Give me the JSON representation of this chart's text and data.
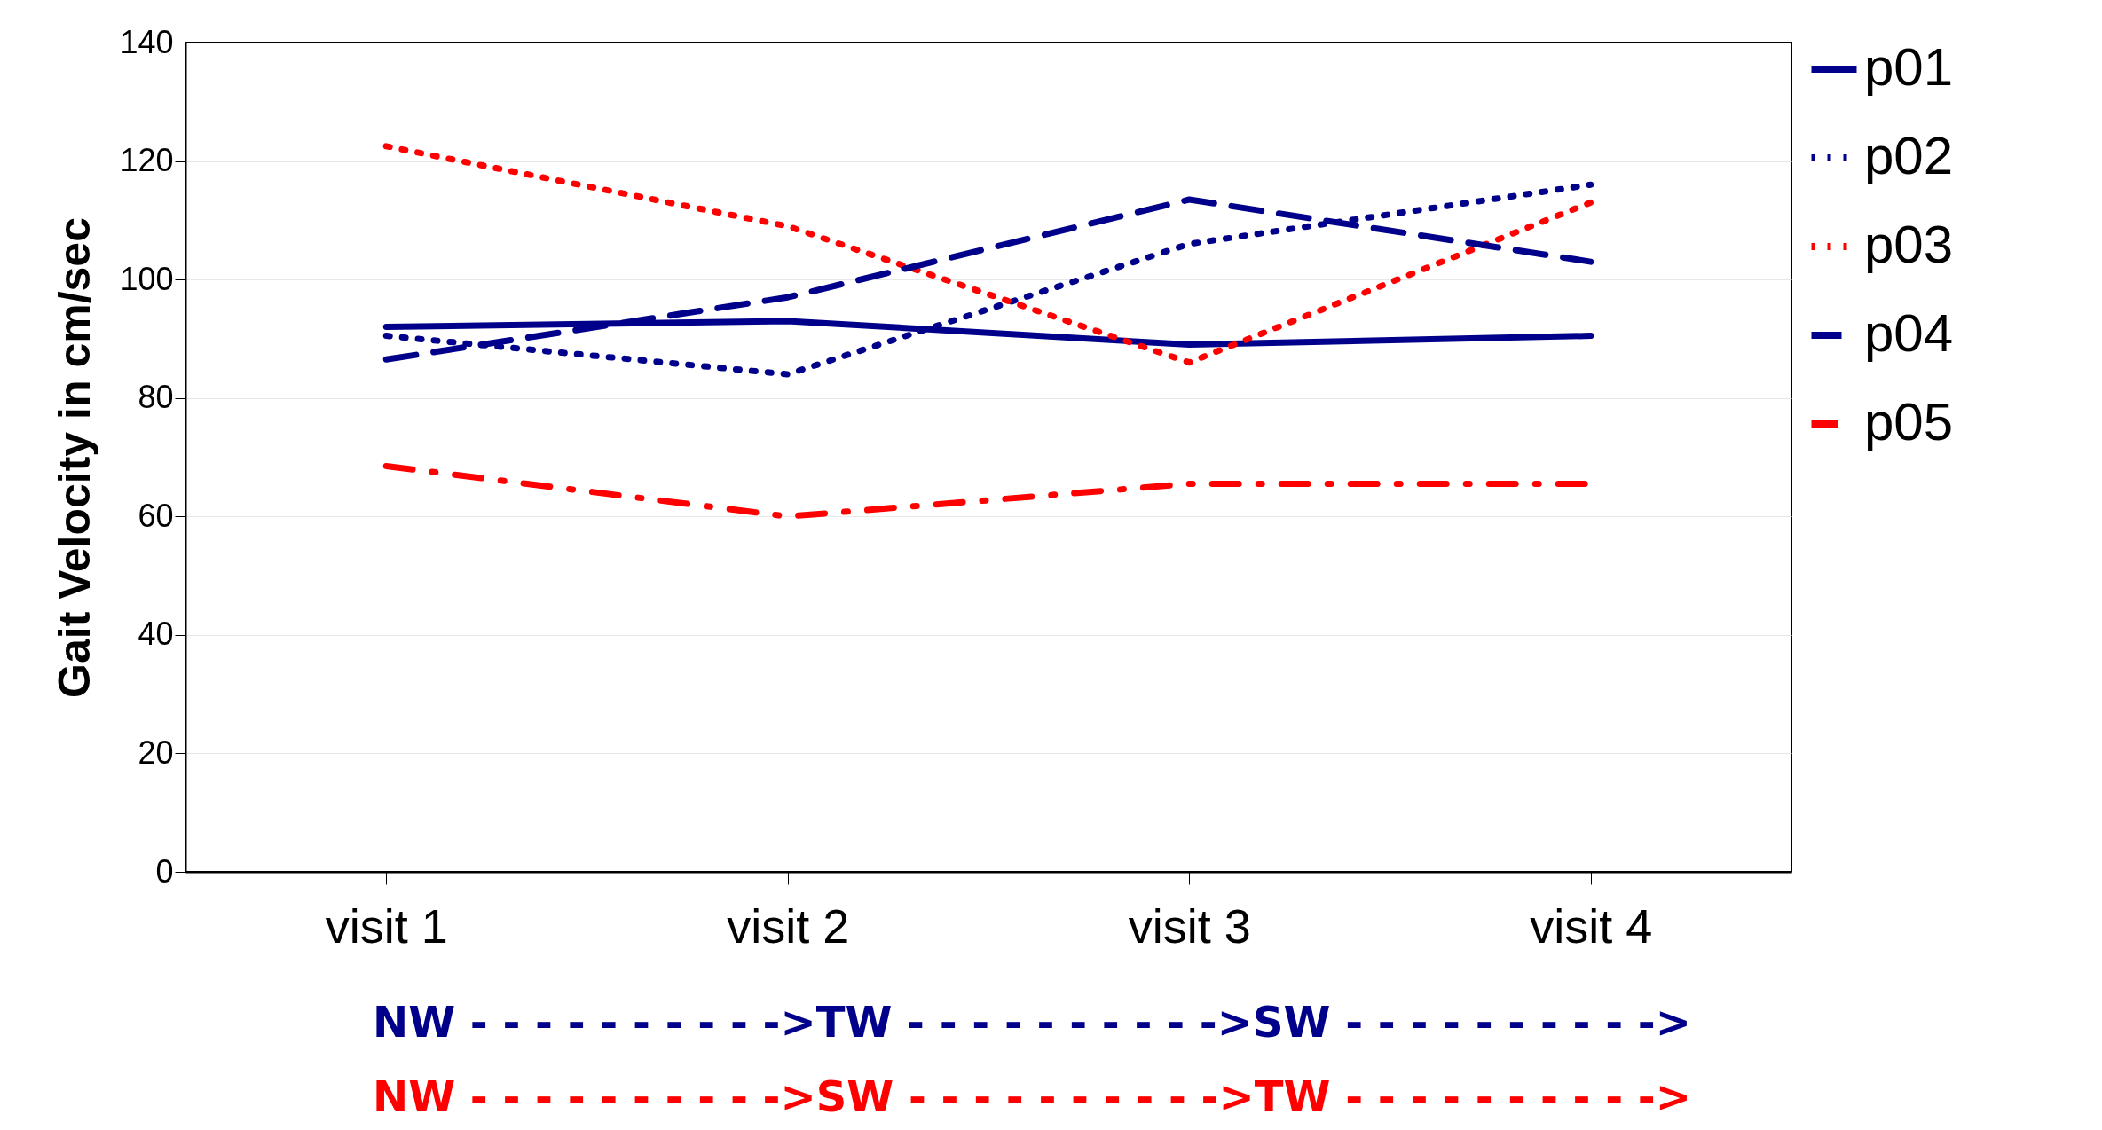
{
  "chart_data": {
    "type": "line",
    "ylabel": "Gait Velocity in cm/sec",
    "categories": [
      "visit 1",
      "visit 2",
      "visit 3",
      "visit 4"
    ],
    "series": [
      {
        "name": "p01",
        "color": "#00008b",
        "line_style": "solid",
        "values": [
          92,
          93,
          89,
          90.5
        ]
      },
      {
        "name": "p02",
        "color": "#00008b",
        "line_style": "dotted",
        "values": [
          90.5,
          84,
          106,
          116
        ]
      },
      {
        "name": "p03",
        "color": "#ff0000",
        "line_style": "dotted",
        "values": [
          122.5,
          109,
          86,
          113
        ]
      },
      {
        "name": "p04",
        "color": "#00008b",
        "line_style": "dashed",
        "values": [
          86.5,
          97,
          113.5,
          103
        ]
      },
      {
        "name": "p05",
        "color": "#ff0000",
        "line_style": "dashdot",
        "values": [
          68.5,
          60,
          65.5,
          65.5
        ]
      }
    ],
    "ylim": [
      0,
      140
    ],
    "yticks": [
      0,
      20,
      40,
      60,
      80,
      100,
      120,
      140
    ],
    "grid": "y",
    "legend": "right",
    "annotations": [
      "NW - - - - - - - - - ->TW - - - - - - - - - ->SW - - - - - - - - - ->",
      "NW - - - - - - - - - ->SW - - - - - - - - - ->TW - - - - - - - - - ->"
    ]
  }
}
